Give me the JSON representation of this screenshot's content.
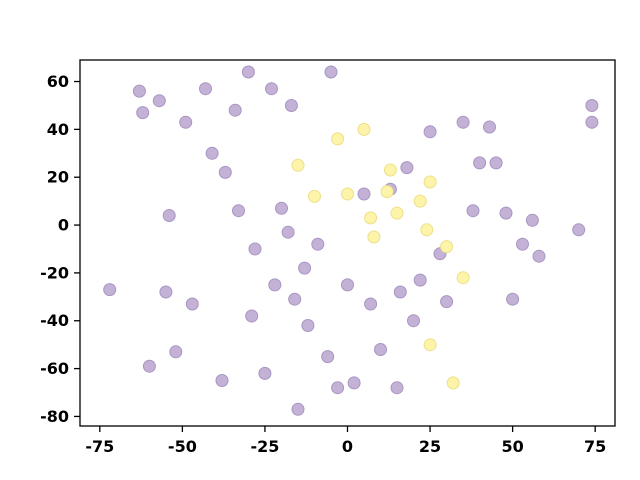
{
  "figure": {
    "background": "#ffffff"
  },
  "chart_data": {
    "type": "scatter",
    "title": "",
    "xlabel": "",
    "ylabel": "",
    "xlim": [
      -81,
      81
    ],
    "ylim": [
      -84,
      69
    ],
    "xticks": [
      -75,
      -50,
      -25,
      0,
      25,
      50,
      75
    ],
    "yticks": [
      -80,
      -60,
      -40,
      -20,
      0,
      20,
      40,
      60
    ],
    "grid": false,
    "legend_position": "none",
    "marker": {
      "radius": 6
    },
    "series": [
      {
        "name": "cluster-purple",
        "fill": "#c3b1d6",
        "edge": "#a896c2",
        "points": [
          [
            -72,
            -27
          ],
          [
            -63,
            56
          ],
          [
            -62,
            47
          ],
          [
            -60,
            -59
          ],
          [
            -57,
            52
          ],
          [
            -55,
            -28
          ],
          [
            -54,
            4
          ],
          [
            -52,
            -53
          ],
          [
            -49,
            43
          ],
          [
            -47,
            -33
          ],
          [
            -43,
            57
          ],
          [
            -41,
            30
          ],
          [
            -38,
            -65
          ],
          [
            -37,
            22
          ],
          [
            -34,
            48
          ],
          [
            -33,
            6
          ],
          [
            -30,
            64
          ],
          [
            -29,
            -38
          ],
          [
            -28,
            -10
          ],
          [
            -25,
            -62
          ],
          [
            -23,
            57
          ],
          [
            -22,
            -25
          ],
          [
            -20,
            7
          ],
          [
            -18,
            -3
          ],
          [
            -17,
            50
          ],
          [
            -16,
            -31
          ],
          [
            -15,
            -77
          ],
          [
            -13,
            -18
          ],
          [
            -12,
            -42
          ],
          [
            -9,
            -8
          ],
          [
            -6,
            -55
          ],
          [
            -5,
            64
          ],
          [
            -3,
            -68
          ],
          [
            0,
            -25
          ],
          [
            2,
            -66
          ],
          [
            5,
            13
          ],
          [
            7,
            -33
          ],
          [
            10,
            -52
          ],
          [
            13,
            15
          ],
          [
            15,
            -68
          ],
          [
            16,
            -28
          ],
          [
            18,
            24
          ],
          [
            20,
            -40
          ],
          [
            22,
            -23
          ],
          [
            25,
            39
          ],
          [
            28,
            -12
          ],
          [
            30,
            -32
          ],
          [
            35,
            43
          ],
          [
            38,
            6
          ],
          [
            40,
            26
          ],
          [
            43,
            41
          ],
          [
            45,
            26
          ],
          [
            48,
            5
          ],
          [
            50,
            -31
          ],
          [
            53,
            -8
          ],
          [
            56,
            2
          ],
          [
            58,
            -13
          ],
          [
            70,
            -2
          ],
          [
            74,
            50
          ],
          [
            74,
            43
          ]
        ]
      },
      {
        "name": "cluster-yellow",
        "fill": "#fdf3a9",
        "edge": "#ece089",
        "points": [
          [
            -15,
            25
          ],
          [
            -10,
            12
          ],
          [
            -3,
            36
          ],
          [
            0,
            13
          ],
          [
            5,
            40
          ],
          [
            7,
            3
          ],
          [
            8,
            -5
          ],
          [
            12,
            14
          ],
          [
            13,
            23
          ],
          [
            15,
            5
          ],
          [
            22,
            10
          ],
          [
            24,
            -2
          ],
          [
            25,
            18
          ],
          [
            30,
            -9
          ],
          [
            35,
            -22
          ],
          [
            25,
            -50
          ],
          [
            32,
            -66
          ]
        ]
      }
    ],
    "tick_font_size": 16,
    "axis_color": "#000000"
  }
}
